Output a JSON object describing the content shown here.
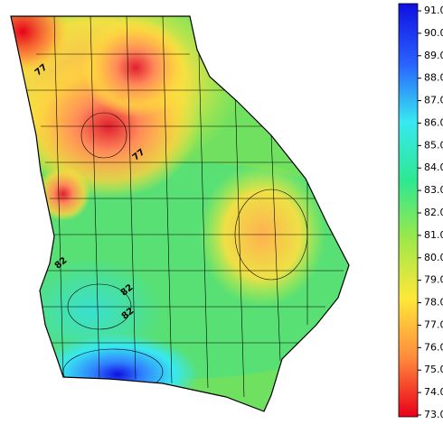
{
  "colorbar": {
    "range": [
      73,
      91
    ],
    "ticks": [
      {
        "value": 91,
        "label": "91.0"
      },
      {
        "value": 90,
        "label": "90.0"
      },
      {
        "value": 89,
        "label": "89.0"
      },
      {
        "value": 88,
        "label": "88.0"
      },
      {
        "value": 87,
        "label": "87.0"
      },
      {
        "value": 86,
        "label": "86.0"
      },
      {
        "value": 85,
        "label": "85.0"
      },
      {
        "value": 84,
        "label": "84.0"
      },
      {
        "value": 83,
        "label": "83.0"
      },
      {
        "value": 82,
        "label": "82.0"
      },
      {
        "value": 81,
        "label": "81.0"
      },
      {
        "value": 80,
        "label": "80.0"
      },
      {
        "value": 79,
        "label": "79.0"
      },
      {
        "value": 78,
        "label": "78.0"
      },
      {
        "value": 77,
        "label": "77.0"
      },
      {
        "value": 76,
        "label": "76.0"
      },
      {
        "value": 75,
        "label": "75.0"
      },
      {
        "value": 74,
        "label": "74.0"
      },
      {
        "value": 73,
        "label": "73.0"
      }
    ],
    "colors": [
      "#e8001a",
      "#ff8a3c",
      "#ffe83a",
      "#9ee84a",
      "#2ee890",
      "#38e8f0",
      "#2860ff",
      "#1010e0"
    ]
  },
  "contour_labels": [
    "77",
    "77",
    "82",
    "82",
    "82"
  ]
}
